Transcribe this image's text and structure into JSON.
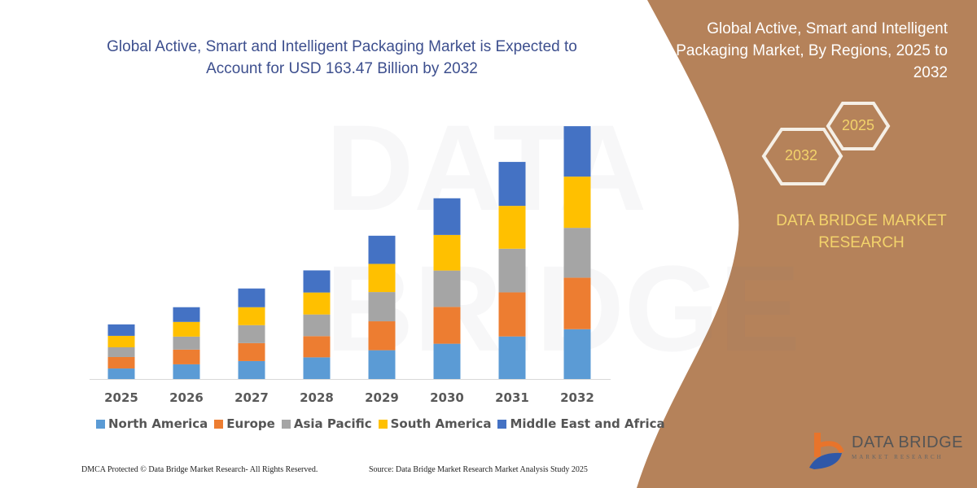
{
  "header": {
    "title": "Global Active, Smart and Intelligent Packaging Market is Expected to Account for USD 163.47 Billion by 2032"
  },
  "side_panel": {
    "title": "Global Active, Smart and Intelligent Packaging Market, By Regions, 2025 to 2032",
    "hex_years": [
      "2025",
      "2032"
    ],
    "brand": "DATA BRIDGE MARKET RESEARCH",
    "logo_text": "DATA BRIDGE",
    "logo_subtext": "MARKET RESEARCH",
    "background_color": "#B5825A"
  },
  "watermark": "DATA BRIDGE",
  "footer": {
    "left": "DMCA Protected © Data Bridge Market Research-  All Rights Reserved.",
    "right": "Source: Data Bridge Market Research  Market Analysis Study 2025"
  },
  "chart_data": {
    "type": "bar",
    "stacked": true,
    "title": "Global Active, Smart and Intelligent Packaging Market is Expected to Account for USD 163.47 Billion by 2032",
    "xlabel": "",
    "ylabel": "",
    "y_axis_shown": false,
    "grid": false,
    "legend_position": "bottom",
    "categories": [
      "2025",
      "2026",
      "2027",
      "2028",
      "2029",
      "2030",
      "2031",
      "2032"
    ],
    "series": [
      {
        "name": "North America",
        "color": "#5B9BD5",
        "values": [
          6.8,
          9.5,
          11.6,
          14.0,
          18.6,
          22.8,
          27.5,
          32.2
        ]
      },
      {
        "name": "Europe",
        "color": "#ED7D31",
        "values": [
          7.4,
          9.5,
          11.6,
          13.7,
          18.7,
          23.8,
          28.5,
          33.3
        ]
      },
      {
        "name": "Asia Pacific",
        "color": "#A5A5A5",
        "values": [
          6.3,
          8.4,
          11.6,
          14.0,
          18.9,
          23.5,
          28.2,
          32.2
        ]
      },
      {
        "name": "South America",
        "color": "#FFC000",
        "values": [
          7.4,
          9.5,
          11.6,
          14.2,
          18.2,
          23.0,
          27.7,
          33.1
        ]
      },
      {
        "name": "Middle East and Africa",
        "color": "#4472C4",
        "values": [
          7.4,
          9.5,
          12.1,
          14.3,
          18.2,
          23.7,
          28.4,
          32.6
        ]
      }
    ]
  }
}
